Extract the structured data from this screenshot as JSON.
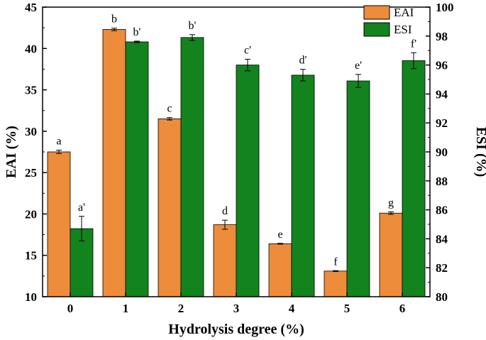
{
  "chart_data": {
    "type": "bar",
    "categories": [
      "0",
      "1",
      "2",
      "3",
      "4",
      "5",
      "6"
    ],
    "xlabel": "Hydrolysis degree (%)",
    "ylabel": "EAI (%)",
    "y2label": "ESI (%)",
    "ylim": [
      10,
      45
    ],
    "y2lim": [
      80,
      100
    ],
    "yticks": [
      "10",
      "15",
      "20",
      "25",
      "30",
      "35",
      "40",
      "45"
    ],
    "y2ticks": [
      "80",
      "82",
      "84",
      "86",
      "88",
      "90",
      "92",
      "94",
      "96",
      "98",
      "100"
    ],
    "legend_position": "top-right",
    "series": [
      {
        "name": "EAI",
        "axis": "left",
        "color": "#ed8c3a",
        "values": [
          27.5,
          42.3,
          31.5,
          18.7,
          16.4,
          13.1,
          20.1
        ],
        "errors": [
          0.2,
          0.15,
          0.15,
          0.55,
          0.05,
          0.05,
          0.15
        ],
        "letters": [
          "a",
          "b",
          "c",
          "d",
          "e",
          "f",
          "g"
        ]
      },
      {
        "name": "ESI",
        "axis": "right",
        "color": "#13831e",
        "values": [
          84.7,
          97.6,
          97.9,
          96.0,
          95.3,
          94.9,
          96.3
        ],
        "errors": [
          0.85,
          0.05,
          0.2,
          0.4,
          0.4,
          0.45,
          0.55
        ],
        "letters": [
          "a'",
          "b'",
          "b'",
          "c'",
          "d'",
          "e'",
          "f'"
        ]
      }
    ]
  }
}
